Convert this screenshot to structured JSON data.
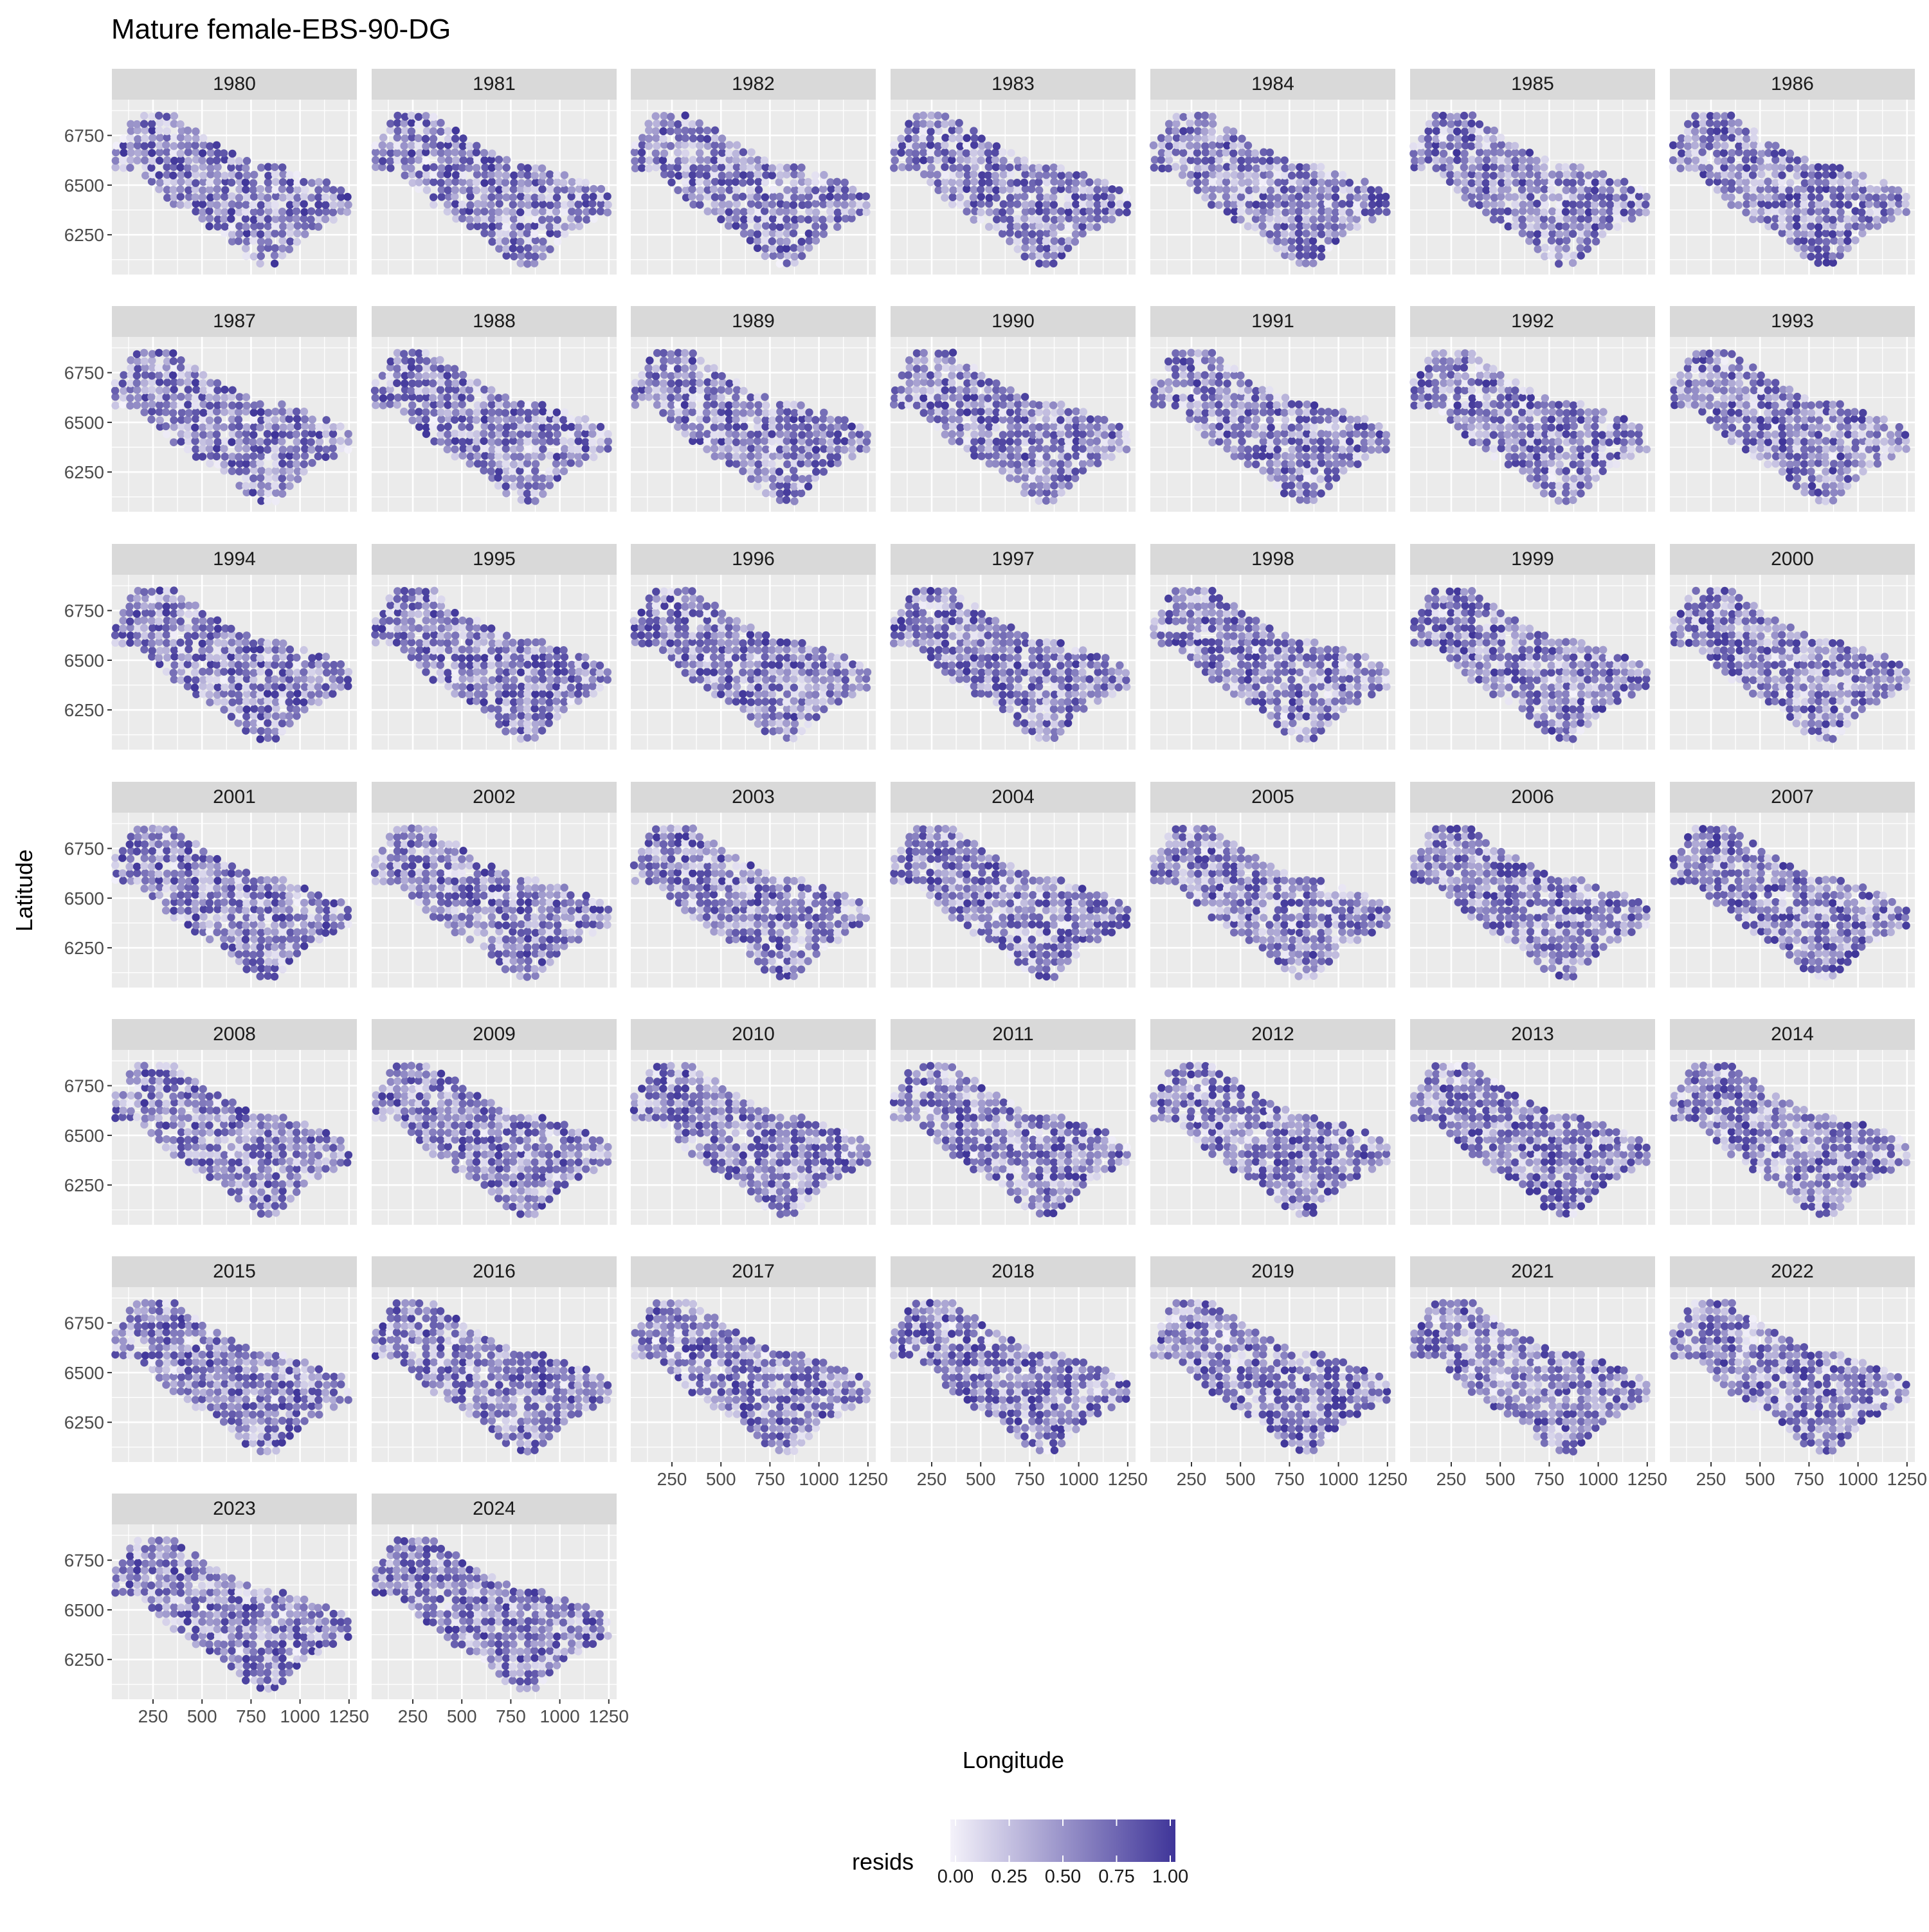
{
  "chart_data": {
    "type": "scatter",
    "title": "Mature female-EBS-90-DG",
    "xlabel": "Longitude",
    "ylabel": "Latitude",
    "x_ticks": [
      250,
      500,
      750,
      1000,
      1250
    ],
    "x_tick_labels": [
      "250",
      "500",
      "750",
      "1000",
      "1250"
    ],
    "y_ticks": [
      6250,
      6500,
      6750
    ],
    "y_tick_labels": [
      "6250",
      "6500",
      "6750"
    ],
    "xlim": [
      40,
      1290
    ],
    "ylim": [
      6050,
      6930
    ],
    "grid": true,
    "facet_by": "year",
    "facet_columns": 7,
    "panels": [
      "1980",
      "1981",
      "1982",
      "1983",
      "1984",
      "1985",
      "1986",
      "1987",
      "1988",
      "1989",
      "1990",
      "1991",
      "1992",
      "1993",
      "1994",
      "1995",
      "1996",
      "1997",
      "1998",
      "1999",
      "2000",
      "2001",
      "2002",
      "2003",
      "2004",
      "2005",
      "2006",
      "2007",
      "2008",
      "2009",
      "2010",
      "2011",
      "2012",
      "2013",
      "2014",
      "2015",
      "2016",
      "2017",
      "2018",
      "2019",
      "2021",
      "2022",
      "2023",
      "2024"
    ],
    "color_variable": "resids",
    "legend": {
      "title": "resids",
      "position": "bottom",
      "ticks": [
        "0.00",
        "0.25",
        "0.50",
        "0.75",
        "1.00"
      ],
      "range": [
        0,
        1
      ],
      "low_color": "#f4f2fa",
      "high_color": "#3f3599"
    },
    "survey_grid_outline": [
      [
        60,
        6700
      ],
      [
        180,
        6880
      ],
      [
        370,
        6860
      ],
      [
        520,
        6730
      ],
      [
        700,
        6640
      ],
      [
        950,
        6580
      ],
      [
        1080,
        6540
      ],
      [
        1260,
        6470
      ],
      [
        1250,
        6360
      ],
      [
        1000,
        6230
      ],
      [
        860,
        6080
      ],
      [
        740,
        6130
      ],
      [
        540,
        6290
      ],
      [
        330,
        6400
      ],
      [
        180,
        6560
      ],
      [
        60,
        6560
      ]
    ],
    "station_spacing": [
      37,
      37
    ]
  },
  "colors": {
    "panel_background": "#ebebeb",
    "strip_background": "#d9d9d9",
    "grid_major": "#ffffff",
    "text": "#1a1a1a",
    "tick_text": "#4d4d4d"
  }
}
